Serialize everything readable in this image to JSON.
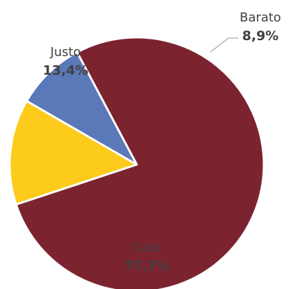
{
  "chart_data": {
    "type": "pie",
    "title": "",
    "start_angle_deg": -28,
    "categories": [
      "Caro",
      "Justo",
      "Barato"
    ],
    "values": [
      77.7,
      13.4,
      8.9
    ],
    "value_labels": [
      "77,7%",
      "13,4%",
      "8,9%"
    ],
    "colors": [
      "#7b2430",
      "#fccb1c",
      "#5b78b8"
    ],
    "slice_border_color": "#ffffff",
    "label_color": "#404040",
    "leader_line_color": "#a6a6a6"
  }
}
